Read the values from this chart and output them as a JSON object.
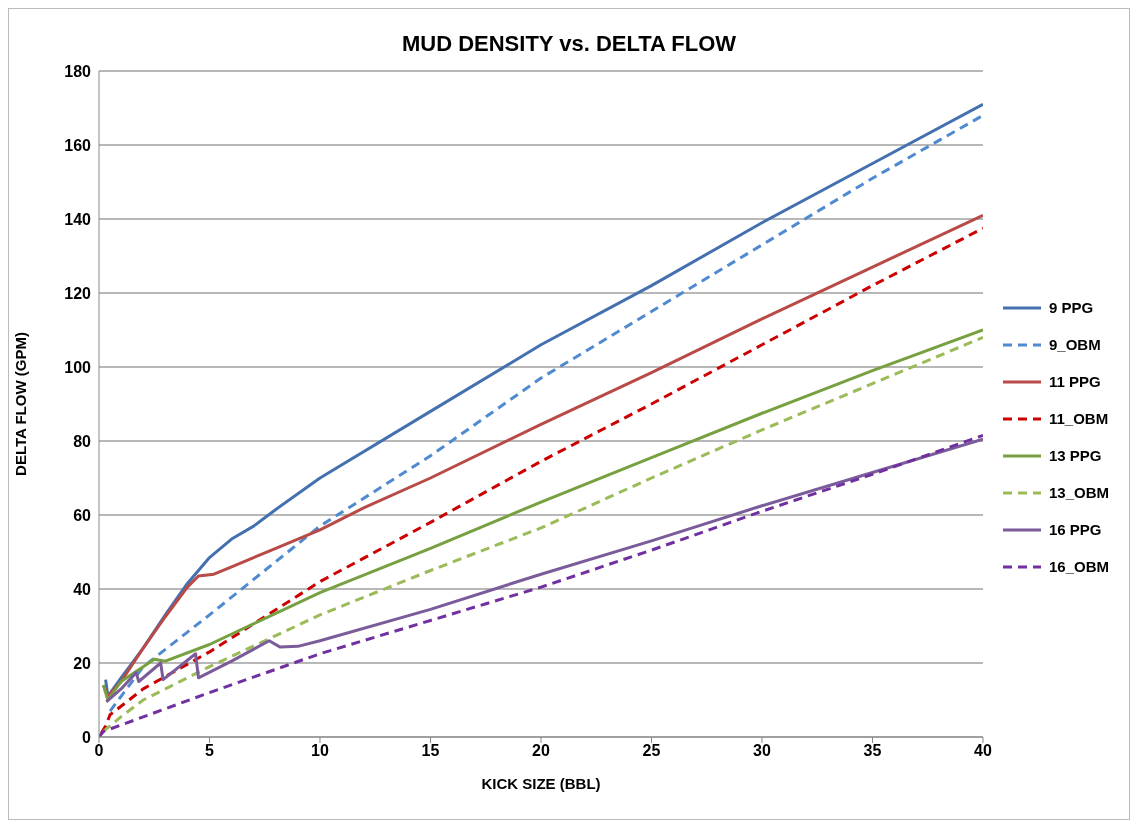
{
  "chart_data": {
    "type": "line",
    "title": "MUD DENSITY vs. DELTA FLOW",
    "xlabel": "KICK SIZE (BBL)",
    "ylabel": "DELTA FLOW (GPM)",
    "xlim": [
      0,
      40
    ],
    "xticks": [
      0,
      5,
      10,
      15,
      20,
      25,
      30,
      35,
      40
    ],
    "ylim": [
      0,
      180
    ],
    "yticks": [
      0,
      20,
      40,
      60,
      80,
      100,
      120,
      140,
      160,
      180
    ],
    "grid": "y",
    "legend": "right",
    "marker": "none",
    "series": [
      {
        "name": "9 PPG",
        "color": "#4470b0",
        "line_style": "solid",
        "x": [
          0.3,
          0.4,
          1,
          2,
          3,
          4,
          4.5,
          5,
          6,
          7,
          8,
          10,
          15,
          20,
          25,
          30,
          35,
          40
        ],
        "values": [
          15.5,
          11,
          16,
          24,
          33,
          41.5,
          45,
          48.5,
          53.5,
          57,
          61.5,
          70,
          88,
          106,
          122,
          139,
          155,
          171
        ]
      },
      {
        "name": "9_OBM",
        "color": "#4f8ad0",
        "line_style": "dashed",
        "x": [
          0.5,
          2,
          5,
          10,
          15,
          20,
          25,
          30,
          35,
          40
        ],
        "values": [
          7,
          19,
          33,
          57,
          76,
          97,
          115,
          133,
          151,
          168
        ]
      },
      {
        "name": "11 PPG",
        "color": "#b84a47",
        "line_style": "solid",
        "x": [
          0.2,
          0.4,
          1,
          2,
          3,
          4,
          4.5,
          5.2,
          6,
          8,
          10,
          12,
          15,
          20,
          25,
          30,
          35,
          40
        ],
        "values": [
          14,
          11,
          15,
          24,
          32.5,
          40.5,
          43.5,
          44,
          46,
          51,
          56,
          62,
          70,
          84.5,
          98.5,
          113,
          127,
          141
        ]
      },
      {
        "name": "11_OBM",
        "color": "#cc0000",
        "line_style": "dashed",
        "x": [
          0.1,
          0.3,
          0.5,
          2,
          5,
          10,
          15,
          20,
          25,
          30,
          35,
          40
        ],
        "values": [
          1,
          3,
          6,
          13,
          23,
          42,
          58,
          74.5,
          90,
          106,
          122,
          137.5
        ]
      },
      {
        "name": "13 PPG",
        "color": "#77a040",
        "line_style": "solid",
        "x": [
          0.2,
          0.4,
          1,
          2,
          2.5,
          3,
          5,
          10,
          15,
          20,
          25,
          30,
          35,
          40
        ],
        "values": [
          14,
          10,
          15,
          19,
          21,
          20.5,
          25,
          39,
          51,
          63.5,
          75.5,
          87.5,
          99,
          110
        ]
      },
      {
        "name": "13_OBM",
        "color": "#9bbb59",
        "line_style": "dashed",
        "x": [
          0.2,
          1,
          2,
          5,
          10,
          15,
          20,
          25,
          30,
          35,
          40
        ],
        "values": [
          1.5,
          5.5,
          10,
          19,
          33,
          45,
          56.5,
          70,
          83,
          95.5,
          108
        ]
      },
      {
        "name": "16 PPG",
        "color": "#7a5c9a",
        "line_style": "solid",
        "x": [
          0.33,
          1,
          1.68,
          1.8,
          2.79,
          2.9,
          4.37,
          4.5,
          6,
          7.7,
          8.2,
          9,
          10,
          15,
          20,
          25,
          30,
          35,
          40
        ],
        "values": [
          9.5,
          13,
          17.4,
          15,
          20,
          15.5,
          22.5,
          16,
          20.5,
          26,
          24.3,
          24.5,
          26,
          34.5,
          44,
          53,
          62.5,
          71.5,
          80.5
        ]
      },
      {
        "name": "16_OBM",
        "color": "#7030a0",
        "line_style": "dashed",
        "x": [
          0,
          0.2,
          5,
          10,
          15,
          20,
          25,
          30,
          35,
          40
        ],
        "values": [
          0,
          1.5,
          12,
          22.5,
          31.5,
          40.5,
          50.5,
          61,
          71,
          81.5
        ]
      }
    ]
  }
}
